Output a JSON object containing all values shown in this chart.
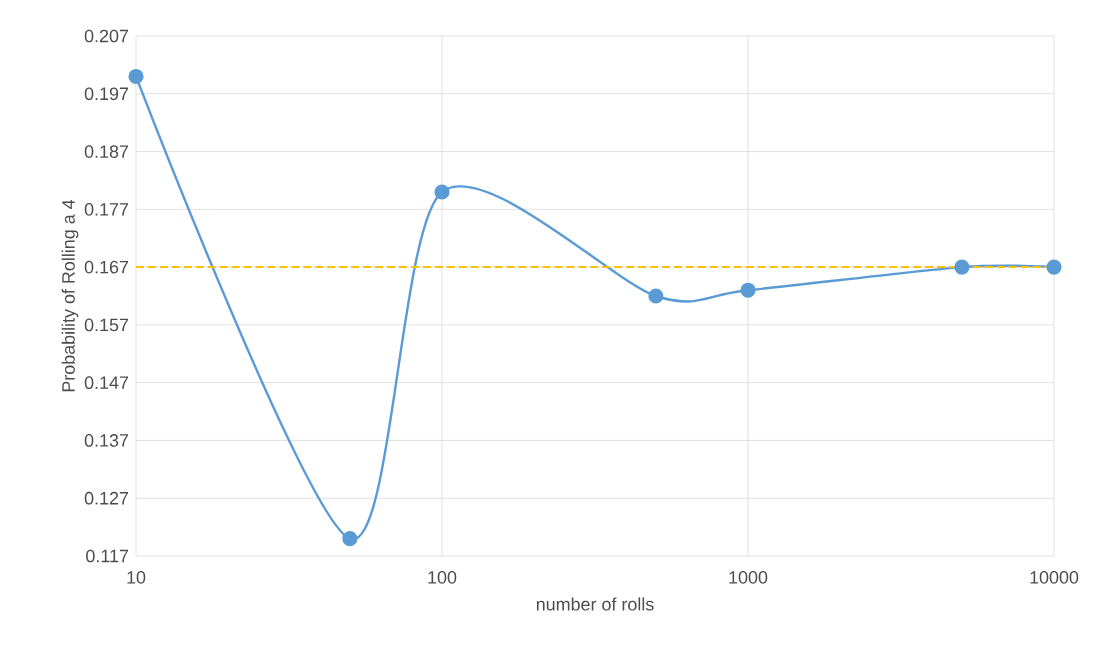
{
  "chart_data": {
    "type": "line",
    "xlabel": "number of rolls",
    "ylabel": "Probability of Rolling a 4",
    "x": [
      10,
      50,
      100,
      500,
      1000,
      5000,
      10000
    ],
    "series": [
      {
        "color": "#5b9bd5",
        "values": [
          0.2,
          0.12,
          0.18,
          0.162,
          0.163,
          0.167,
          0.167
        ]
      }
    ],
    "log": "x",
    "xlim": [
      10,
      10000
    ],
    "xticks": [
      10,
      100,
      1000,
      10000
    ],
    "ylim": [
      0.117,
      0.207
    ],
    "yticks": [
      0.117,
      0.127,
      0.137,
      0.147,
      0.157,
      0.167,
      0.177,
      0.187,
      0.197,
      0.207
    ],
    "ref_lines": [
      {
        "axis": "y",
        "value": 0.167,
        "color": "#ffc000",
        "line_style": "dashed"
      }
    ],
    "grid": true,
    "marker": "circle",
    "line_style": "solid"
  }
}
